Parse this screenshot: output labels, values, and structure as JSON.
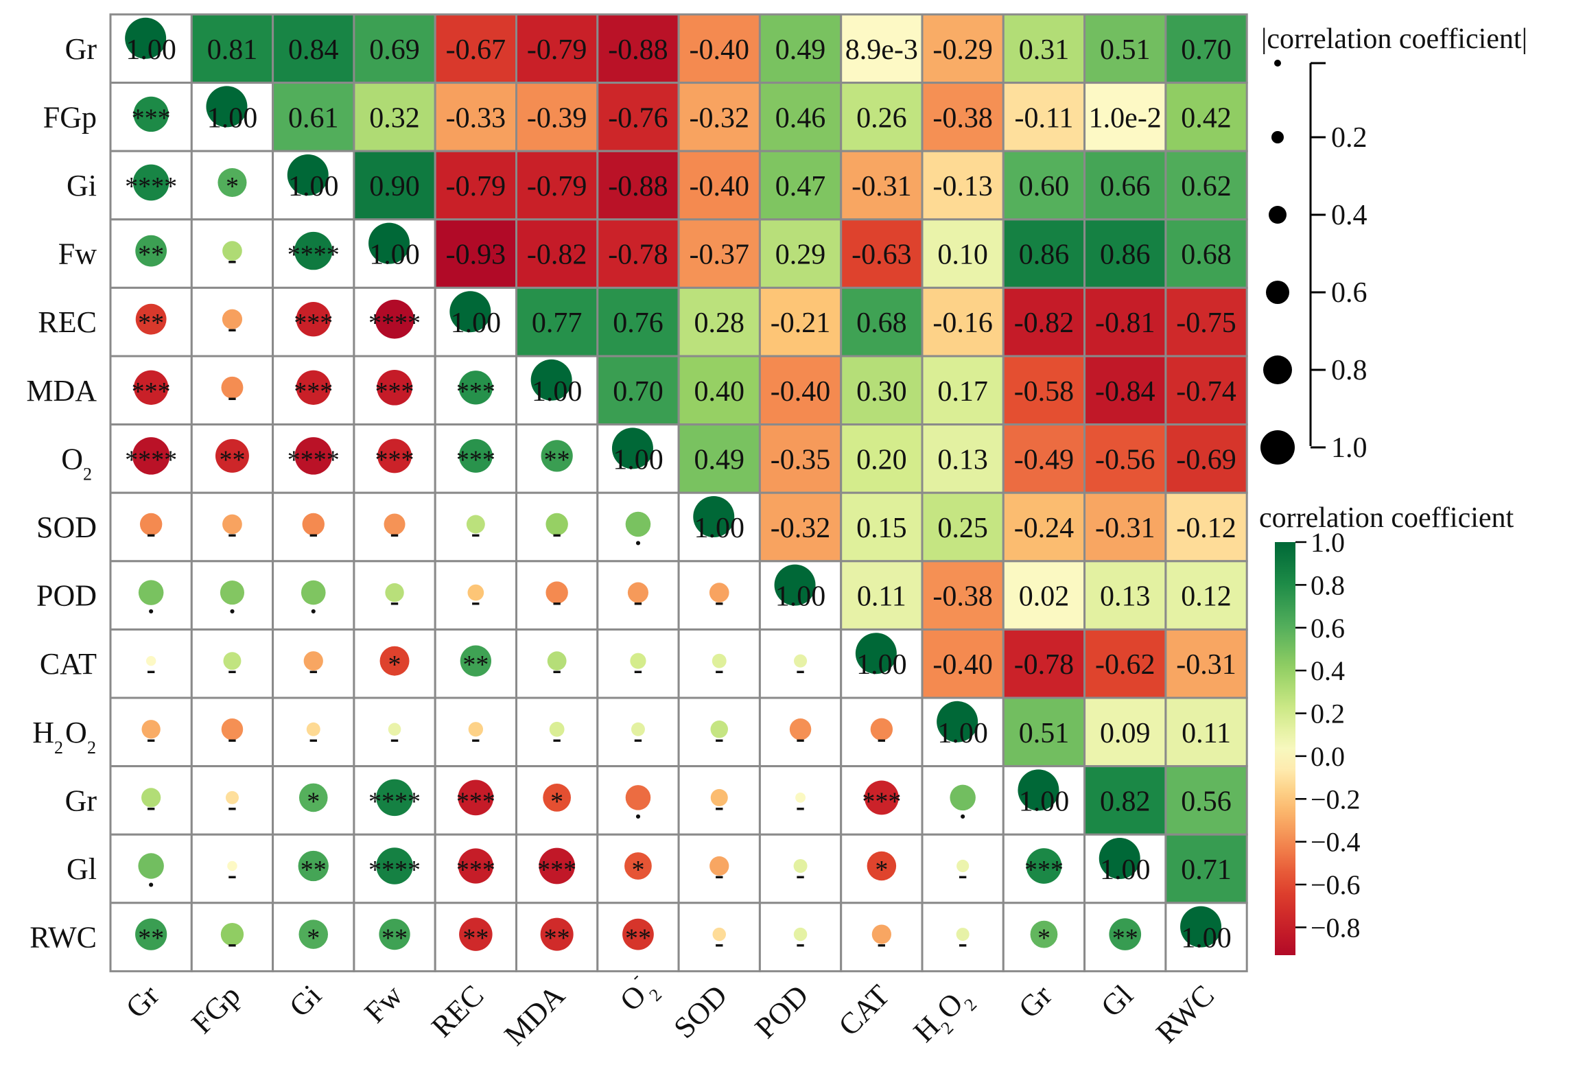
{
  "chart_data": {
    "type": "heatmap",
    "title": "",
    "variables": [
      "Gr",
      "FGp",
      "Gi",
      "Fw",
      "REC",
      "MDA",
      "O2-",
      "SOD",
      "POD",
      "CAT",
      "H2O2",
      "Gr",
      "Gl",
      "RWC"
    ],
    "y_tick_labels": [
      "Gr",
      "FGp",
      "Gi",
      "Fw",
      "REC",
      "MDA",
      "O",
      "SOD",
      "POD",
      "CAT",
      "H",
      "Gr",
      "Gl",
      "RWC"
    ],
    "x_tick_labels": [
      "Gr",
      "FGp",
      "Gi",
      "Fw",
      "REC",
      "MDA",
      "O",
      "SOD",
      "POD",
      "CAT",
      "H",
      "Gr",
      "Gl",
      "RWC"
    ],
    "tick_suffixes": {
      "o2_sub": "2",
      "o2_sup": "-",
      "h2o2_sub1": "2",
      "h2o2_mid": "O",
      "h2o2_sub2": "2"
    },
    "upper_text": [
      [
        "1.00",
        "0.81",
        "0.84",
        "0.69",
        "-0.67",
        "-0.79",
        "-0.88",
        "-0.40",
        "0.49",
        "8.9e-3",
        "-0.29",
        "0.31",
        "0.51",
        "0.70"
      ],
      [
        "",
        "1.00",
        "0.61",
        "0.32",
        "-0.33",
        "-0.39",
        "-0.76",
        "-0.32",
        "0.46",
        "0.26",
        "-0.38",
        "-0.11",
        "1.0e-2",
        "0.42"
      ],
      [
        "",
        "",
        "1.00",
        "0.90",
        "-0.79",
        "-0.79",
        "-0.88",
        "-0.40",
        "0.47",
        "-0.31",
        "-0.13",
        "0.60",
        "0.66",
        "0.62"
      ],
      [
        "",
        "",
        "",
        "1.00",
        "-0.93",
        "-0.82",
        "-0.78",
        "-0.37",
        "0.29",
        "-0.63",
        "0.10",
        "0.86",
        "0.86",
        "0.68"
      ],
      [
        "",
        "",
        "",
        "",
        "1.00",
        "0.77",
        "0.76",
        "0.28",
        "-0.21",
        "0.68",
        "-0.16",
        "-0.82",
        "-0.81",
        "-0.75"
      ],
      [
        "",
        "",
        "",
        "",
        "",
        "1.00",
        "0.70",
        "0.40",
        "-0.40",
        "0.30",
        "0.17",
        "-0.58",
        "-0.84",
        "-0.74"
      ],
      [
        "",
        "",
        "",
        "",
        "",
        "",
        "1.00",
        "0.49",
        "-0.35",
        "0.20",
        "0.13",
        "-0.49",
        "-0.56",
        "-0.69"
      ],
      [
        "",
        "",
        "",
        "",
        "",
        "",
        "",
        "1.00",
        "-0.32",
        "0.15",
        "0.25",
        "-0.24",
        "-0.31",
        "-0.12"
      ],
      [
        "",
        "",
        "",
        "",
        "",
        "",
        "",
        "",
        "1.00",
        "0.11",
        "-0.38",
        "0.02",
        "0.13",
        "0.12"
      ],
      [
        "",
        "",
        "",
        "",
        "",
        "",
        "",
        "",
        "",
        "1.00",
        "-0.40",
        "-0.78",
        "-0.62",
        "-0.31"
      ],
      [
        "",
        "",
        "",
        "",
        "",
        "",
        "",
        "",
        "",
        "",
        "1.00",
        "0.51",
        "0.09",
        "0.11"
      ],
      [
        "",
        "",
        "",
        "",
        "",
        "",
        "",
        "",
        "",
        "",
        "",
        "1.00",
        "0.82",
        "0.56"
      ],
      [
        "",
        "",
        "",
        "",
        "",
        "",
        "",
        "",
        "",
        "",
        "",
        "",
        "1.00",
        "0.71"
      ],
      [
        "",
        "",
        "",
        "",
        "",
        "",
        "",
        "",
        "",
        "",
        "",
        "",
        "",
        "1.00"
      ]
    ],
    "significance": [
      [],
      [
        "***"
      ],
      [
        "****",
        "*"
      ],
      [
        "**",
        "-",
        "****"
      ],
      [
        "**",
        "-",
        "***",
        "****"
      ],
      [
        "***",
        "-",
        "***",
        "***",
        "***"
      ],
      [
        "****",
        "**",
        "****",
        "***",
        "***",
        "**"
      ],
      [
        "-",
        "-",
        "-",
        "-",
        "-",
        "-",
        "."
      ],
      [
        ".",
        ".",
        ".",
        "-",
        "-",
        "-",
        "-",
        "-"
      ],
      [
        "-",
        "-",
        "-",
        "*",
        "**",
        "-",
        "-",
        "-",
        "-"
      ],
      [
        "-",
        "-",
        "-",
        "-",
        "-",
        "-",
        "-",
        "-",
        "-",
        "-"
      ],
      [
        "-",
        "-",
        "*",
        "****",
        "***",
        "*",
        ".",
        "-",
        "-",
        "***",
        "."
      ],
      [
        ".",
        "-",
        "**",
        "****",
        "***",
        "***",
        "*",
        "-",
        "-",
        "*",
        "-",
        "***"
      ],
      [
        "**",
        "-",
        "*",
        "**",
        "**",
        "**",
        "**",
        "-",
        "-",
        "-",
        "-",
        "*",
        "**"
      ]
    ],
    "size_legend": {
      "title": "|correlation coefficient|",
      "ticks": [
        "0.2",
        "0.4",
        "0.6",
        "0.8",
        "1.0"
      ]
    },
    "color_legend": {
      "title": "correlation coefficient",
      "ticks": [
        "1.0",
        "0.8",
        "0.6",
        "0.4",
        "0.2",
        "0.0",
        "−0.2",
        "−0.4",
        "−0.6",
        "−0.8"
      ],
      "range": [
        -0.93,
        1.0
      ]
    },
    "colors": {
      "strong_negative": "#ab0b2a",
      "moderate_negative": "#e85a3a",
      "weak_negative": "#f6b36a",
      "zero": "#fef7c2",
      "weak_positive": "#bfe27e",
      "moderate_positive": "#55b35f",
      "strong_positive": "#0b6e3d",
      "grid": "#8a8a8a"
    }
  }
}
